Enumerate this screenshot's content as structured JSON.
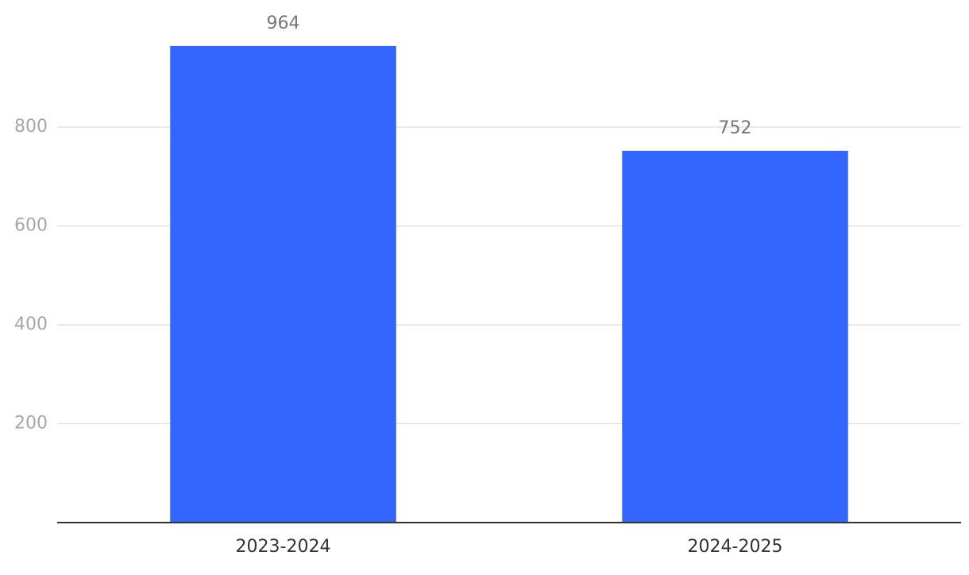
{
  "chart_data": {
    "type": "bar",
    "categories": [
      "2023-2024",
      "2024-2025"
    ],
    "values": [
      964,
      752
    ],
    "color": "#3366ff",
    "ylim": [
      0,
      1000
    ],
    "yticks": [
      200,
      400,
      600,
      800
    ],
    "grid": true
  }
}
